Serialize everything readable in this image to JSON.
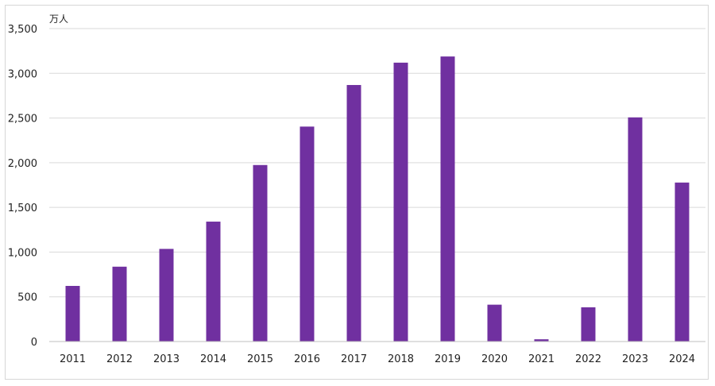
{
  "chart_data": {
    "type": "bar",
    "title": "",
    "unit_label": "万人",
    "xlabel": "",
    "ylabel": "",
    "categories": [
      "2011",
      "2012",
      "2013",
      "2014",
      "2015",
      "2016",
      "2017",
      "2018",
      "2019",
      "2020",
      "2021",
      "2022",
      "2023",
      "2024"
    ],
    "values": [
      622,
      837,
      1036,
      1341,
      1974,
      2404,
      2869,
      3119,
      3188,
      412,
      25,
      383,
      2507,
      1778
    ],
    "ylim": [
      0,
      3500
    ],
    "yticks": [
      0,
      500,
      1000,
      1500,
      2000,
      2500,
      3000,
      3500
    ],
    "ytick_labels": [
      "0",
      "500",
      "1,000",
      "1,500",
      "2,000",
      "2,500",
      "3,000",
      "3,500"
    ],
    "grid": true,
    "legend": "none",
    "bar_color": "#7030a0"
  }
}
